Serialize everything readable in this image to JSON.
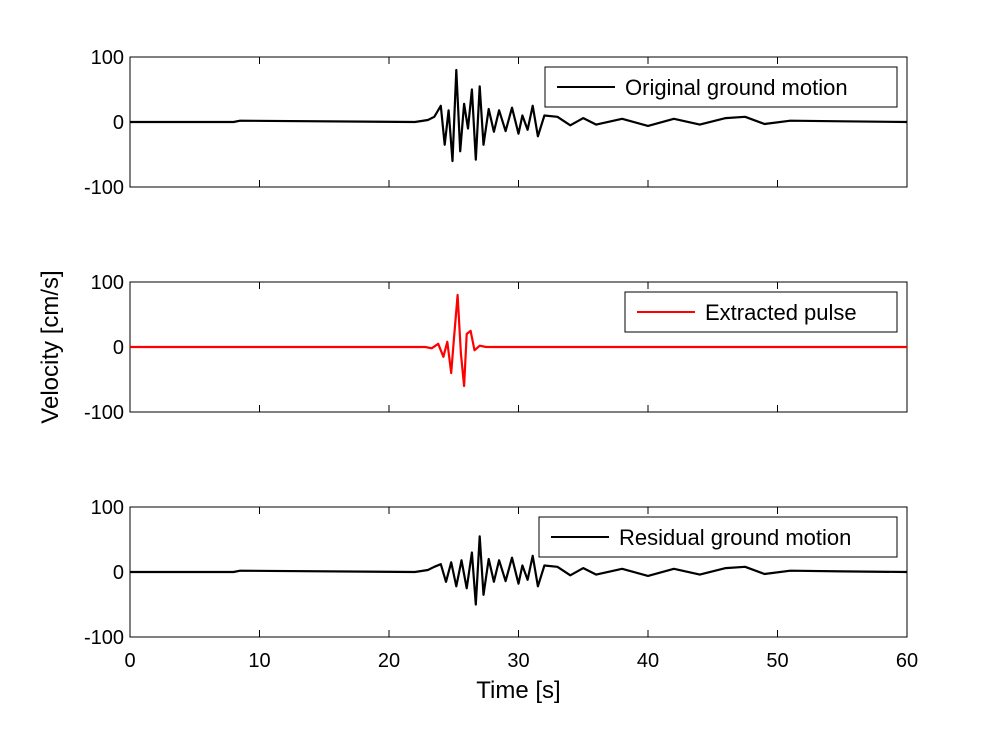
{
  "chart_data": {
    "type": "line",
    "xlabel": "Time [s]",
    "ylabel": "Velocity [cm/s]",
    "xlim": [
      0,
      60
    ],
    "x_ticks": [
      0,
      10,
      20,
      30,
      40,
      50,
      60
    ],
    "ylim": [
      -100,
      100
    ],
    "y_ticks": [
      -100,
      0,
      100
    ],
    "grid": false,
    "legend_placement": "top-right",
    "panels": [
      {
        "legend": "Original ground motion",
        "color": "#000000",
        "series": {
          "name": "Original ground motion",
          "x": [
            0,
            8,
            8.5,
            22,
            23,
            23.5,
            24,
            24.3,
            24.6,
            24.9,
            25.2,
            25.5,
            25.8,
            26.1,
            26.4,
            26.7,
            27.0,
            27.3,
            27.7,
            28.1,
            28.5,
            29.0,
            29.5,
            30.0,
            30.3,
            30.7,
            31.1,
            31.5,
            32.0,
            33,
            34,
            35,
            36,
            38,
            40,
            42,
            44,
            46,
            47.5,
            49,
            51,
            55,
            60
          ],
          "y": [
            0,
            0,
            2,
            0,
            3,
            8,
            25,
            -35,
            18,
            -60,
            80,
            -45,
            28,
            -10,
            50,
            -58,
            55,
            -35,
            20,
            -15,
            18,
            -14,
            22,
            -18,
            10,
            -12,
            25,
            -22,
            10,
            8,
            -5,
            6,
            -4,
            5,
            -6,
            5,
            -4,
            6,
            8,
            -3,
            2,
            1,
            0
          ]
        }
      },
      {
        "legend": "Extracted pulse",
        "color": "#ff0000",
        "series": {
          "name": "Extracted pulse",
          "x": [
            0,
            22.8,
            23.3,
            23.8,
            24.2,
            24.5,
            24.8,
            25.0,
            25.3,
            25.55,
            25.8,
            26.0,
            26.3,
            26.6,
            27.0,
            27.5,
            60
          ],
          "y": [
            0,
            0,
            -2,
            5,
            -15,
            8,
            -40,
            10,
            80,
            -10,
            -60,
            20,
            25,
            -5,
            2,
            0,
            0
          ]
        }
      },
      {
        "legend": "Residual ground motion",
        "color": "#000000",
        "series": {
          "name": "Residual ground motion",
          "x": [
            0,
            8,
            8.5,
            22,
            23,
            23.5,
            24,
            24.4,
            24.8,
            25.2,
            25.6,
            26.0,
            26.4,
            26.7,
            27.0,
            27.3,
            27.7,
            28.1,
            28.5,
            29.0,
            29.5,
            30.0,
            30.3,
            30.7,
            31.1,
            31.5,
            32.0,
            33,
            34,
            35,
            36,
            38,
            40,
            42,
            44,
            46,
            47.5,
            49,
            51,
            55,
            60
          ],
          "y": [
            0,
            0,
            2,
            0,
            3,
            8,
            12,
            -15,
            15,
            -22,
            18,
            -25,
            30,
            -50,
            55,
            -35,
            20,
            -15,
            18,
            -14,
            22,
            -18,
            10,
            -12,
            25,
            -22,
            10,
            8,
            -5,
            6,
            -4,
            5,
            -6,
            5,
            -4,
            6,
            8,
            -3,
            2,
            1,
            0
          ]
        }
      }
    ]
  }
}
